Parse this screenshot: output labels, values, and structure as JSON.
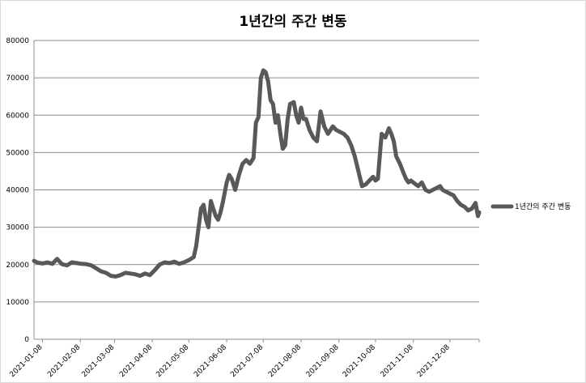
{
  "chart_data": {
    "type": "line",
    "title": "1년간의 주간 변동",
    "xlabel": "",
    "ylabel": "",
    "ylim": [
      0,
      80000
    ],
    "y_ticks": [
      0,
      10000,
      20000,
      30000,
      40000,
      50000,
      60000,
      70000,
      80000
    ],
    "x_tick_labels": [
      "2021-01-08",
      "2021-02-08",
      "2021-03-08",
      "2021-04-08",
      "2021-05-08",
      "2021-06-08",
      "2021-07-08",
      "2021-08-08",
      "2021-09-08",
      "2021-10-08",
      "2021-11-08",
      "2021-12-08"
    ],
    "grid": "horizontal",
    "legend": "right",
    "line_color": "#595959",
    "series": [
      {
        "name": "1년간의 주간 변동",
        "x": [
          "2021-01-01",
          "2021-01-04",
          "2021-01-08",
          "2021-01-12",
          "2021-01-16",
          "2021-01-20",
          "2021-01-24",
          "2021-01-28",
          "2021-02-01",
          "2021-02-05",
          "2021-02-09",
          "2021-02-13",
          "2021-02-17",
          "2021-02-21",
          "2021-02-25",
          "2021-03-01",
          "2021-03-05",
          "2021-03-09",
          "2021-03-13",
          "2021-03-17",
          "2021-03-21",
          "2021-03-25",
          "2021-03-29",
          "2021-04-02",
          "2021-04-06",
          "2021-04-10",
          "2021-04-14",
          "2021-04-18",
          "2021-04-22",
          "2021-04-26",
          "2021-04-30",
          "2021-05-04",
          "2021-05-08",
          "2021-05-12",
          "2021-05-14",
          "2021-05-16",
          "2021-05-18",
          "2021-05-20",
          "2021-05-22",
          "2021-05-24",
          "2021-05-26",
          "2021-05-28",
          "2021-05-30",
          "2021-06-01",
          "2021-06-03",
          "2021-06-05",
          "2021-06-08",
          "2021-06-10",
          "2021-06-12",
          "2021-06-15",
          "2021-06-18",
          "2021-06-21",
          "2021-06-24",
          "2021-06-27",
          "2021-06-30",
          "2021-07-02",
          "2021-07-04",
          "2021-07-06",
          "2021-07-08",
          "2021-07-10",
          "2021-07-12",
          "2021-07-14",
          "2021-07-16",
          "2021-07-18",
          "2021-07-20",
          "2021-07-22",
          "2021-07-24",
          "2021-07-26",
          "2021-07-28",
          "2021-07-30",
          "2021-08-02",
          "2021-08-04",
          "2021-08-06",
          "2021-08-08",
          "2021-08-10",
          "2021-08-12",
          "2021-08-15",
          "2021-08-18",
          "2021-08-21",
          "2021-08-24",
          "2021-08-27",
          "2021-08-30",
          "2021-09-01",
          "2021-09-03",
          "2021-09-06",
          "2021-09-09",
          "2021-09-12",
          "2021-09-15",
          "2021-09-18",
          "2021-09-21",
          "2021-09-24",
          "2021-09-27",
          "2021-09-30",
          "2021-10-03",
          "2021-10-06",
          "2021-10-08",
          "2021-10-10",
          "2021-10-13",
          "2021-10-16",
          "2021-10-19",
          "2021-10-21",
          "2021-10-23",
          "2021-10-25",
          "2021-10-28",
          "2021-10-31",
          "2021-11-02",
          "2021-11-04",
          "2021-11-06",
          "2021-11-08",
          "2021-11-10",
          "2021-11-12",
          "2021-11-15",
          "2021-11-18",
          "2021-11-21",
          "2021-11-24",
          "2021-11-27",
          "2021-11-30",
          "2021-12-02",
          "2021-12-05",
          "2021-12-08",
          "2021-12-11",
          "2021-12-14",
          "2021-12-17",
          "2021-12-20",
          "2021-12-23",
          "2021-12-26",
          "2021-12-29",
          "2021-12-31",
          "2022-01-01"
        ],
        "values": [
          21000,
          20500,
          20300,
          20600,
          20200,
          21500,
          20100,
          19800,
          20600,
          20400,
          20200,
          20100,
          19800,
          19000,
          18200,
          17800,
          17000,
          16800,
          17200,
          17800,
          17600,
          17400,
          17000,
          17600,
          17200,
          18500,
          20000,
          20600,
          20400,
          20800,
          20200,
          20600,
          21200,
          22000,
          25000,
          30000,
          35000,
          36000,
          32000,
          30000,
          37000,
          35000,
          33000,
          32000,
          34000,
          37000,
          42000,
          44000,
          43000,
          40000,
          44000,
          47000,
          48000,
          47000,
          48500,
          58000,
          59500,
          70000,
          72000,
          71500,
          69000,
          64000,
          63000,
          58000,
          60000,
          55000,
          51000,
          52000,
          59000,
          63000,
          63500,
          60000,
          58000,
          62000,
          59000,
          59000,
          56000,
          54000,
          53000,
          61000,
          57000,
          55000,
          56000,
          57000,
          56000,
          55500,
          55000,
          54000,
          52000,
          49000,
          45000,
          41000,
          41500,
          42500,
          43500,
          42500,
          43000,
          55000,
          54000,
          56500,
          55000,
          53000,
          49000,
          47000,
          44500,
          43000,
          42000,
          42500,
          42000,
          41500,
          41000,
          42000,
          40000,
          39500,
          40000,
          40500,
          41000,
          40000,
          39500,
          39000,
          38500,
          37000,
          36000,
          35500,
          34500,
          35000,
          36500,
          33000,
          34000
        ],
        "point_values_note_is_not_used": null
      }
    ]
  }
}
